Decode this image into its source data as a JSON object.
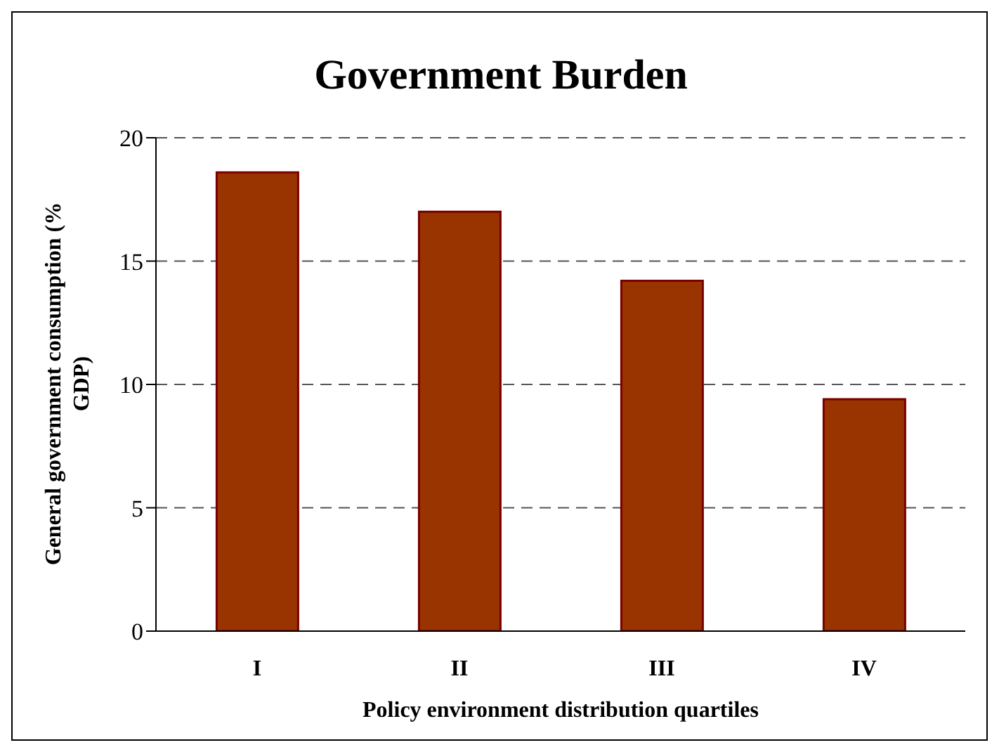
{
  "chart_data": {
    "type": "bar",
    "title": "Government Burden",
    "xlabel": "Policy environment distribution quartiles",
    "ylabel": "General government consumption (% GDP)",
    "categories": [
      "I",
      "II",
      "III",
      "IV"
    ],
    "values": [
      18.6,
      17.0,
      14.2,
      9.4
    ],
    "color": "#993300",
    "ylim": [
      0,
      20
    ],
    "yticks": [
      0,
      5,
      10,
      15,
      20
    ],
    "grid": "y"
  }
}
